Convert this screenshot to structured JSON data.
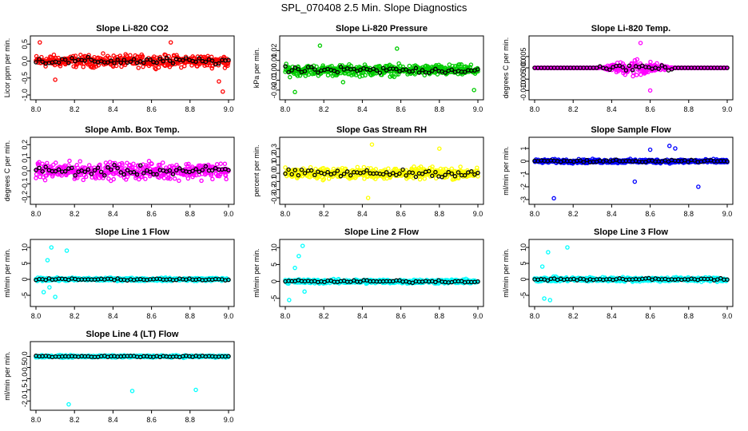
{
  "page": {
    "title": "SPL_070408  2.5 Min. Slope Diagnostics"
  },
  "chart_data": [
    {
      "type": "scatter",
      "title": "Slope Li-820 CO2",
      "ylabel": "Licor ppm per min.",
      "color": "#ff0000",
      "xlim": [
        8.0,
        9.0
      ],
      "ylim": [
        -1.0,
        0.6
      ],
      "xticks": [
        "8.0",
        "8.2",
        "8.4",
        "8.6",
        "8.8",
        "9.0"
      ],
      "yticks": [
        -1.0,
        -0.5,
        0.0,
        0.5
      ],
      "ytick_labels": [
        "-1.0",
        "-0.5",
        "0.0",
        "0.5"
      ],
      "spread": 0.25,
      "outliers": [
        [
          8.02,
          0.55
        ],
        [
          8.1,
          -0.55
        ],
        [
          8.97,
          -0.9
        ],
        [
          8.95,
          -0.6
        ],
        [
          8.7,
          0.55
        ]
      ]
    },
    {
      "type": "scatter",
      "title": "Slope Li-820 Pressure",
      "ylabel": "kPa per min.",
      "color": "#00cc00",
      "xlim": [
        8.0,
        9.0
      ],
      "ylim": [
        -0.025,
        0.03
      ],
      "xticks": [
        "8.0",
        "8.2",
        "8.4",
        "8.6",
        "8.8",
        "9.0"
      ],
      "yticks": [
        -0.02,
        -0.01,
        0.0,
        0.01,
        0.02
      ],
      "ytick_labels": [
        "-0.02",
        "-0.01",
        "0.00",
        "0.01",
        "0.02"
      ],
      "spread": 0.008,
      "outliers": [
        [
          8.05,
          -0.022
        ],
        [
          8.18,
          0.025
        ],
        [
          8.3,
          -0.012
        ],
        [
          8.98,
          -0.02
        ],
        [
          8.58,
          0.022
        ]
      ]
    },
    {
      "type": "scatter",
      "title": "Slope Li-820 Temp.",
      "ylabel": "degrees C per min.",
      "color": "#ff00ff",
      "xlim": [
        8.0,
        9.0
      ],
      "ylim": [
        -0.012,
        0.012
      ],
      "xticks": [
        "8.0",
        "8.2",
        "8.4",
        "8.6",
        "8.8",
        "9.0"
      ],
      "yticks": [
        -0.01,
        -0.005,
        0.0,
        0.005
      ],
      "ytick_labels": [
        "-0.010",
        "-0.005",
        "0.000",
        "0.005"
      ],
      "flat": 0.0,
      "bump": [
        8.33,
        8.72
      ],
      "spread": 0.004,
      "outliers": [
        [
          8.55,
          0.011
        ],
        [
          8.6,
          -0.01
        ]
      ]
    },
    {
      "type": "scatter",
      "title": "Slope Amb. Box Temp.",
      "ylabel": "degrees C per min.",
      "color": "#ff00ff",
      "xlim": [
        8.0,
        9.0
      ],
      "ylim": [
        -0.22,
        0.22
      ],
      "xticks": [
        "8.0",
        "8.2",
        "8.4",
        "8.6",
        "8.8",
        "9.0"
      ],
      "yticks": [
        -0.2,
        -0.1,
        0.0,
        0.1,
        0.2
      ],
      "ytick_labels": [
        "-0.2",
        "-0.1",
        "0.0",
        "0.1",
        "0.2"
      ],
      "spread": 0.09,
      "outliers": []
    },
    {
      "type": "scatter",
      "title": "Slope Gas Stream RH",
      "ylabel": "percent per min.",
      "color": "#ffff00",
      "xlim": [
        8.0,
        9.0
      ],
      "ylim": [
        -0.32,
        0.38
      ],
      "xticks": [
        "8.0",
        "8.2",
        "8.4",
        "8.6",
        "8.8",
        "9.0"
      ],
      "yticks": [
        -0.3,
        -0.2,
        -0.1,
        0.0,
        0.1,
        0.2,
        0.3
      ],
      "ytick_labels": [
        "-0.3",
        "-0.2",
        "-0.1",
        "0.0",
        "0.1",
        "0.2",
        "0.3"
      ],
      "spread": 0.1,
      "outliers": [
        [
          8.45,
          0.35
        ],
        [
          8.8,
          0.3
        ],
        [
          8.43,
          -0.3
        ]
      ]
    },
    {
      "type": "scatter",
      "title": "Slope Sample Flow",
      "ylabel": "ml/min per min.",
      "color": "#0000ff",
      "xlim": [
        8.0,
        9.0
      ],
      "ylim": [
        -3.0,
        1.5
      ],
      "xticks": [
        "8.0",
        "8.2",
        "8.4",
        "8.6",
        "8.8",
        "9.0"
      ],
      "yticks": [
        -3,
        -2,
        -1,
        0,
        1
      ],
      "ytick_labels": [
        "-3",
        "-2",
        "-1",
        "0",
        "1"
      ],
      "spread": 0.22,
      "outliers": [
        [
          8.1,
          -2.9
        ],
        [
          8.52,
          -1.6
        ],
        [
          8.85,
          -2.0
        ],
        [
          8.7,
          1.2
        ],
        [
          8.6,
          0.9
        ],
        [
          8.73,
          1.0
        ]
      ]
    },
    {
      "type": "scatter",
      "title": "Slope Line 1 Flow",
      "ylabel": "ml/min per min.",
      "color": "#00ffff",
      "xlim": [
        8.0,
        9.0
      ],
      "ylim": [
        -7.0,
        11.0
      ],
      "xticks": [
        "8.0",
        "8.2",
        "8.4",
        "8.6",
        "8.8",
        "9.0"
      ],
      "yticks": [
        -5,
        0,
        5,
        10
      ],
      "ytick_labels": [
        "-5",
        "0",
        "5",
        "10"
      ],
      "spread": 0.7,
      "outliers": [
        [
          8.06,
          6.0
        ],
        [
          8.08,
          10.0
        ],
        [
          8.16,
          9.0
        ],
        [
          8.1,
          -5.5
        ],
        [
          8.07,
          -2.5
        ],
        [
          8.04,
          -4.0
        ]
      ]
    },
    {
      "type": "scatter",
      "title": "Slope Line 2 Flow",
      "ylabel": "ml/min per min.",
      "color": "#00ffff",
      "xlim": [
        8.0,
        9.0
      ],
      "ylim": [
        -6.0,
        11.0
      ],
      "xticks": [
        "8.0",
        "8.2",
        "8.4",
        "8.6",
        "8.8",
        "9.0"
      ],
      "yticks": [
        -5,
        0,
        5,
        10
      ],
      "ytick_labels": [
        "-5",
        "0",
        "5",
        "10"
      ],
      "spread": 0.9,
      "outliers": [
        [
          8.07,
          7.5
        ],
        [
          8.09,
          10.5
        ],
        [
          8.1,
          -3.0
        ],
        [
          8.05,
          4.0
        ],
        [
          8.02,
          -5.5
        ]
      ]
    },
    {
      "type": "scatter",
      "title": "Slope Line 3 Flow",
      "ylabel": "ml/min per min.",
      "color": "#00ffff",
      "xlim": [
        8.0,
        9.0
      ],
      "ylim": [
        -7.0,
        11.0
      ],
      "xticks": [
        "8.0",
        "8.2",
        "8.4",
        "8.6",
        "8.8",
        "9.0"
      ],
      "yticks": [
        -5,
        0,
        5,
        10
      ],
      "ytick_labels": [
        "-5",
        "0",
        "5",
        "10"
      ],
      "spread": 1.0,
      "outliers": [
        [
          8.07,
          8.5
        ],
        [
          8.17,
          10.0
        ],
        [
          8.08,
          -6.5
        ],
        [
          8.05,
          -6.0
        ],
        [
          8.04,
          4.0
        ]
      ]
    },
    {
      "type": "scatter",
      "title": "Slope Line 4 (LT) Flow",
      "ylabel": "ml/min per min.",
      "color": "#00ffff",
      "xlim": [
        8.0,
        9.0
      ],
      "ylim": [
        -2.2,
        0.45
      ],
      "xticks": [
        "8.0",
        "8.2",
        "8.4",
        "8.6",
        "8.8",
        "9.0"
      ],
      "yticks": [
        -2.0,
        -1.5,
        -1.0,
        -0.5,
        0.0
      ],
      "ytick_labels": [
        "-2.0",
        "-1.5",
        "-1.0",
        "-0.5",
        "0.0"
      ],
      "spread": 0.07,
      "outliers": [
        [
          8.17,
          -2.15
        ],
        [
          8.5,
          -1.55
        ],
        [
          8.83,
          -1.5
        ]
      ]
    }
  ]
}
